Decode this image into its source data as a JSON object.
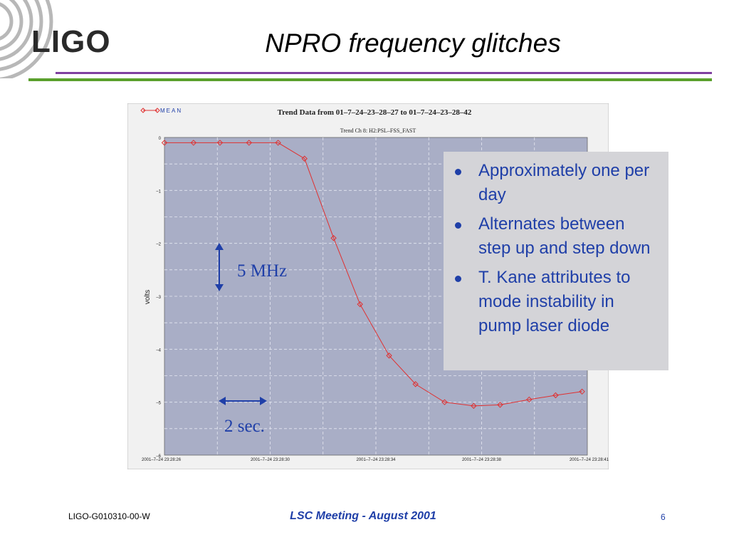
{
  "header": {
    "logo_text": "LIGO",
    "title": "NPRO frequency glitches"
  },
  "bullets": [
    "Approximately one per day",
    "Alternates between step up and step down",
    "T. Kane attributes to mode instability in pump laser diode"
  ],
  "annotations": {
    "vertical_scale": "5 MHz",
    "horizontal_scale": "2 sec."
  },
  "footer": {
    "doc_id": "LIGO-G010310-00-W",
    "meeting": "LSC Meeting - August 2001",
    "page_number": "6"
  },
  "colors": {
    "accent_blue": "#1f3fa8",
    "title_rule": "#7f3fa0",
    "green_rule": "#5aa02c",
    "plot_background": "#a9aec6",
    "series_color": "#e03030"
  },
  "chart_data": {
    "type": "line",
    "title": "Trend Data from 01–7–24–23–28–27 to 01–7–24–23–28–42",
    "subtitle": "Trend Ch 8: H2:PSL–FSS_FAST",
    "xlabel": "",
    "ylabel": "volts",
    "legend": {
      "entries": [
        "MEAN"
      ],
      "placement": "top-left"
    },
    "grid": true,
    "x_tick_labels": [
      "2001–7–24 23:28:26",
      "2001–7–24 23:28:30",
      "2001–7–24 23:28:34",
      "2001–7–24 23:28:38",
      "2001–7–24 23:28:41"
    ],
    "y_tick_labels": [
      "0",
      "–1",
      "–2",
      "–3",
      "–4",
      "–5",
      "–6"
    ],
    "ylim": [
      -6,
      0
    ],
    "xlim": [
      0,
      16
    ],
    "series": [
      {
        "name": "MEAN",
        "x": [
          0,
          1.1,
          2.1,
          3.2,
          4.3,
          5.3,
          6.4,
          7.4,
          8.5,
          9.5,
          10.6,
          11.7,
          12.7,
          13.8,
          14.8,
          15.8
        ],
        "values": [
          -0.1,
          -0.1,
          -0.1,
          -0.1,
          -0.1,
          -0.4,
          -1.9,
          -3.15,
          -4.12,
          -4.66,
          -5.0,
          -5.07,
          -5.05,
          -4.95,
          -4.87,
          -4.8
        ]
      }
    ]
  }
}
